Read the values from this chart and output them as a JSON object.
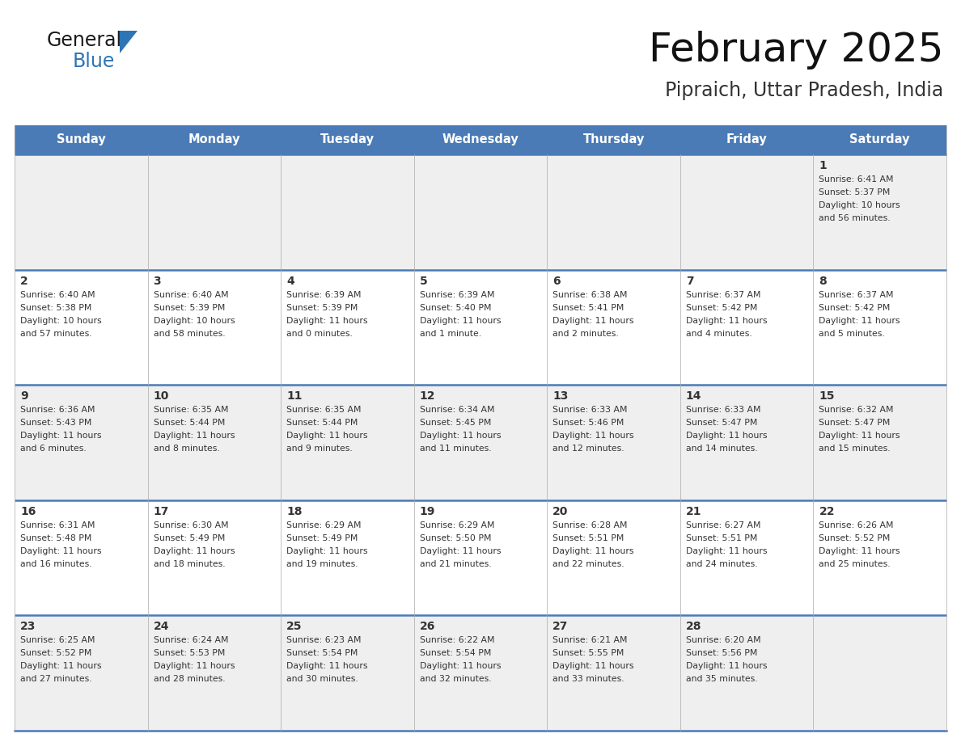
{
  "title": "February 2025",
  "subtitle": "Pipraich, Uttar Pradesh, India",
  "days_of_week": [
    "Sunday",
    "Monday",
    "Tuesday",
    "Wednesday",
    "Thursday",
    "Friday",
    "Saturday"
  ],
  "header_bg": "#4A7BB7",
  "header_text": "#FFFFFF",
  "row_bg_1": "#EFEFEF",
  "row_bg_2": "#FFFFFF",
  "day_num_color": "#333333",
  "text_color": "#333333",
  "border_color": "#4A7BB7",
  "logo_general_color": "#1a1a1a",
  "logo_blue_color": "#2E75B6",
  "triangle_color": "#2E75B6",
  "calendar_data": [
    [
      null,
      null,
      null,
      null,
      null,
      null,
      {
        "day": "1",
        "sunrise": "6:41 AM",
        "sunset": "5:37 PM",
        "daylight": "10 hours",
        "daylight2": "and 56 minutes."
      }
    ],
    [
      {
        "day": "2",
        "sunrise": "6:40 AM",
        "sunset": "5:38 PM",
        "daylight": "10 hours",
        "daylight2": "and 57 minutes."
      },
      {
        "day": "3",
        "sunrise": "6:40 AM",
        "sunset": "5:39 PM",
        "daylight": "10 hours",
        "daylight2": "and 58 minutes."
      },
      {
        "day": "4",
        "sunrise": "6:39 AM",
        "sunset": "5:39 PM",
        "daylight": "11 hours",
        "daylight2": "and 0 minutes."
      },
      {
        "day": "5",
        "sunrise": "6:39 AM",
        "sunset": "5:40 PM",
        "daylight": "11 hours",
        "daylight2": "and 1 minute."
      },
      {
        "day": "6",
        "sunrise": "6:38 AM",
        "sunset": "5:41 PM",
        "daylight": "11 hours",
        "daylight2": "and 2 minutes."
      },
      {
        "day": "7",
        "sunrise": "6:37 AM",
        "sunset": "5:42 PM",
        "daylight": "11 hours",
        "daylight2": "and 4 minutes."
      },
      {
        "day": "8",
        "sunrise": "6:37 AM",
        "sunset": "5:42 PM",
        "daylight": "11 hours",
        "daylight2": "and 5 minutes."
      }
    ],
    [
      {
        "day": "9",
        "sunrise": "6:36 AM",
        "sunset": "5:43 PM",
        "daylight": "11 hours",
        "daylight2": "and 6 minutes."
      },
      {
        "day": "10",
        "sunrise": "6:35 AM",
        "sunset": "5:44 PM",
        "daylight": "11 hours",
        "daylight2": "and 8 minutes."
      },
      {
        "day": "11",
        "sunrise": "6:35 AM",
        "sunset": "5:44 PM",
        "daylight": "11 hours",
        "daylight2": "and 9 minutes."
      },
      {
        "day": "12",
        "sunrise": "6:34 AM",
        "sunset": "5:45 PM",
        "daylight": "11 hours",
        "daylight2": "and 11 minutes."
      },
      {
        "day": "13",
        "sunrise": "6:33 AM",
        "sunset": "5:46 PM",
        "daylight": "11 hours",
        "daylight2": "and 12 minutes."
      },
      {
        "day": "14",
        "sunrise": "6:33 AM",
        "sunset": "5:47 PM",
        "daylight": "11 hours",
        "daylight2": "and 14 minutes."
      },
      {
        "day": "15",
        "sunrise": "6:32 AM",
        "sunset": "5:47 PM",
        "daylight": "11 hours",
        "daylight2": "and 15 minutes."
      }
    ],
    [
      {
        "day": "16",
        "sunrise": "6:31 AM",
        "sunset": "5:48 PM",
        "daylight": "11 hours",
        "daylight2": "and 16 minutes."
      },
      {
        "day": "17",
        "sunrise": "6:30 AM",
        "sunset": "5:49 PM",
        "daylight": "11 hours",
        "daylight2": "and 18 minutes."
      },
      {
        "day": "18",
        "sunrise": "6:29 AM",
        "sunset": "5:49 PM",
        "daylight": "11 hours",
        "daylight2": "and 19 minutes."
      },
      {
        "day": "19",
        "sunrise": "6:29 AM",
        "sunset": "5:50 PM",
        "daylight": "11 hours",
        "daylight2": "and 21 minutes."
      },
      {
        "day": "20",
        "sunrise": "6:28 AM",
        "sunset": "5:51 PM",
        "daylight": "11 hours",
        "daylight2": "and 22 minutes."
      },
      {
        "day": "21",
        "sunrise": "6:27 AM",
        "sunset": "5:51 PM",
        "daylight": "11 hours",
        "daylight2": "and 24 minutes."
      },
      {
        "day": "22",
        "sunrise": "6:26 AM",
        "sunset": "5:52 PM",
        "daylight": "11 hours",
        "daylight2": "and 25 minutes."
      }
    ],
    [
      {
        "day": "23",
        "sunrise": "6:25 AM",
        "sunset": "5:52 PM",
        "daylight": "11 hours",
        "daylight2": "and 27 minutes."
      },
      {
        "day": "24",
        "sunrise": "6:24 AM",
        "sunset": "5:53 PM",
        "daylight": "11 hours",
        "daylight2": "and 28 minutes."
      },
      {
        "day": "25",
        "sunrise": "6:23 AM",
        "sunset": "5:54 PM",
        "daylight": "11 hours",
        "daylight2": "and 30 minutes."
      },
      {
        "day": "26",
        "sunrise": "6:22 AM",
        "sunset": "5:54 PM",
        "daylight": "11 hours",
        "daylight2": "and 32 minutes."
      },
      {
        "day": "27",
        "sunrise": "6:21 AM",
        "sunset": "5:55 PM",
        "daylight": "11 hours",
        "daylight2": "and 33 minutes."
      },
      {
        "day": "28",
        "sunrise": "6:20 AM",
        "sunset": "5:56 PM",
        "daylight": "11 hours",
        "daylight2": "and 35 minutes."
      },
      null
    ]
  ]
}
